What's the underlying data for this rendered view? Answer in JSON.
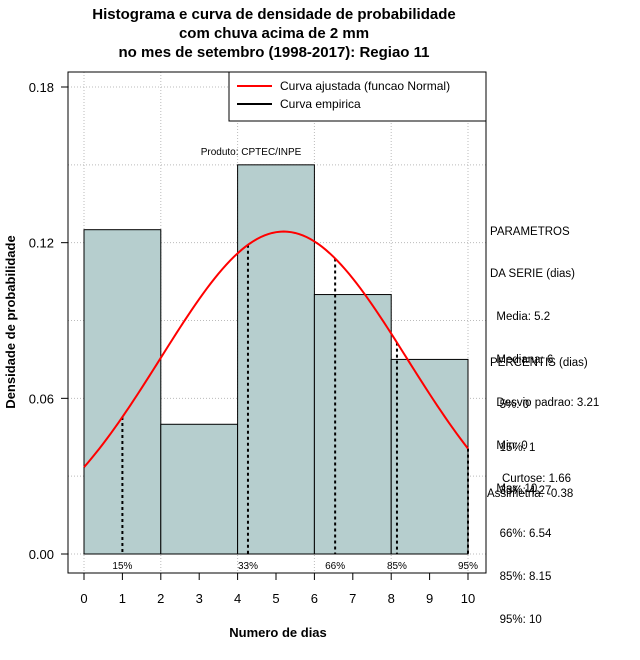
{
  "chart_data": {
    "type": "bar",
    "title_lines": [
      "Histograma e curva de densidade de probabilidade",
      "com chuva acima de 2 mm",
      "no mes de setembro (1998-2017): Regiao 11"
    ],
    "xlabel": "Numero de dias",
    "ylabel": "Densidade de probabilidade",
    "xlim": [
      0,
      10
    ],
    "ylim": [
      0,
      0.18
    ],
    "x_ticks": [
      "0",
      "1",
      "2",
      "3",
      "4",
      "5",
      "6",
      "7",
      "8",
      "9",
      "10"
    ],
    "y_ticks": [
      "0.00",
      "0.06",
      "0.12",
      "0.18"
    ],
    "bins": [
      {
        "from": 0,
        "to": 2,
        "value": 0.125
      },
      {
        "from": 2,
        "to": 4,
        "value": 0.05
      },
      {
        "from": 4,
        "to": 6,
        "value": 0.15
      },
      {
        "from": 6,
        "to": 8,
        "value": 0.1
      },
      {
        "from": 8,
        "to": 10,
        "value": 0.075
      }
    ],
    "fitted_curve": {
      "name": "Curva ajustada (funcao Normal)",
      "mean": 5.2,
      "sd": 3.21,
      "color": "#ff0000"
    },
    "empirical_curve": {
      "name": "Curva empirica",
      "color": "#000000"
    },
    "percentile_lines": [
      {
        "label": "15%",
        "x": 1
      },
      {
        "label": "33%",
        "x": 4.27
      },
      {
        "label": "66%",
        "x": 6.54
      },
      {
        "label": "85%",
        "x": 8.15
      },
      {
        "label": "95%",
        "x": 10
      }
    ],
    "product_label": "Produto: CPTEC/INPE",
    "bar_color": "#b6cece",
    "legend_position": "top-right"
  },
  "side_panel": {
    "parametros": [
      "PARAMETROS",
      "DA SERIE (dias)",
      "  Media: 5.2",
      "  Mediana: 6",
      "  Desvio padrao: 3.21",
      "  Min: 0",
      "  Max: 10"
    ],
    "percentis": [
      "PERCENTIS (dias)",
      "   5%: 0",
      "   15%: 1",
      "   33%: 4.27",
      "   66%: 6.54",
      "   85%: 8.15",
      "   95%: 10"
    ],
    "curtose": "Curtose: 1.66",
    "assimetria": "Assimetria: -0.38"
  }
}
